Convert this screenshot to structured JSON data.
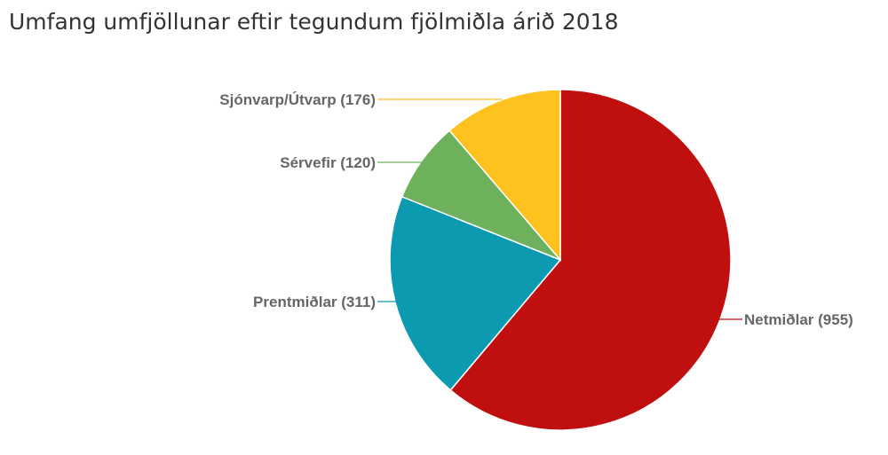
{
  "chart_data": {
    "type": "pie",
    "title": "Umfang umfjöllunar eftir tegundum fjölmiðla árið 2018",
    "legend": "none",
    "slices": [
      {
        "label": "Netmiðlar (955)",
        "value": 955,
        "color": "#c00f0f"
      },
      {
        "label": "Prentmiðlar (311)",
        "value": 311,
        "color": "#0c9ab0"
      },
      {
        "label": "Sérvefir (120)",
        "value": 120,
        "color": "#6db15d"
      },
      {
        "label": "Sjónvarp/Útvarp (176)",
        "value": 176,
        "color": "#fdc21d"
      }
    ]
  }
}
